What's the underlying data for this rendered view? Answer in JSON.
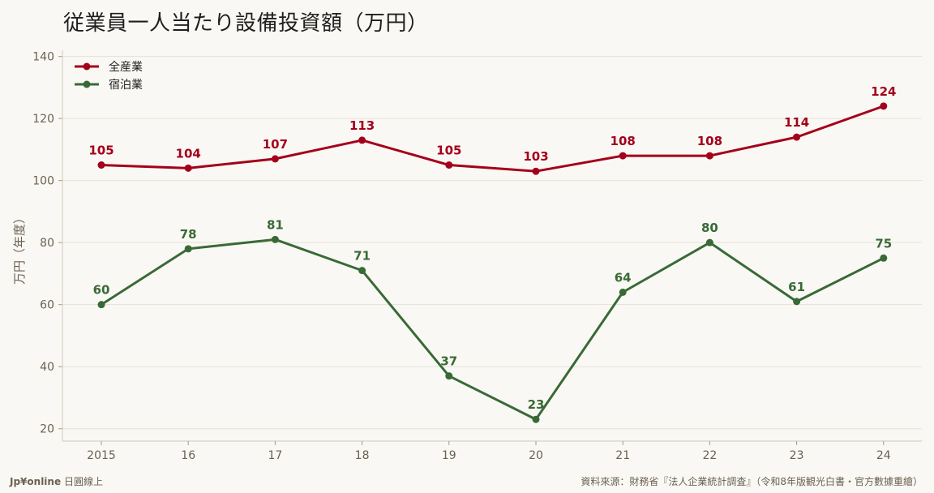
{
  "title": "従業員一人当たり設備投資額（万円）",
  "footer": {
    "brand": "Jp¥online",
    "brand_sub": "日圓線上",
    "source": "資料來源：財務省『法人企業統計調査』（令和8年版観光白書・官方數據重繪）"
  },
  "chart_data": {
    "type": "line",
    "title": "従業員一人当たり設備投資額（万円）",
    "xlabel": "",
    "ylabel": "万円（年度）",
    "categories": [
      "2015",
      "16",
      "17",
      "18",
      "19",
      "20",
      "21",
      "22",
      "23",
      "24"
    ],
    "ylim": [
      16,
      142
    ],
    "yticks": [
      20,
      40,
      60,
      80,
      100,
      120,
      140
    ],
    "grid": true,
    "legend": "top-left",
    "series": [
      {
        "name": "全産業",
        "color": "#a3001b",
        "values": [
          105,
          104,
          107,
          113,
          105,
          103,
          108,
          108,
          114,
          124
        ]
      },
      {
        "name": "宿泊業",
        "color": "#386a36",
        "values": [
          60,
          78,
          81,
          71,
          37,
          23,
          64,
          80,
          61,
          75
        ]
      }
    ]
  }
}
